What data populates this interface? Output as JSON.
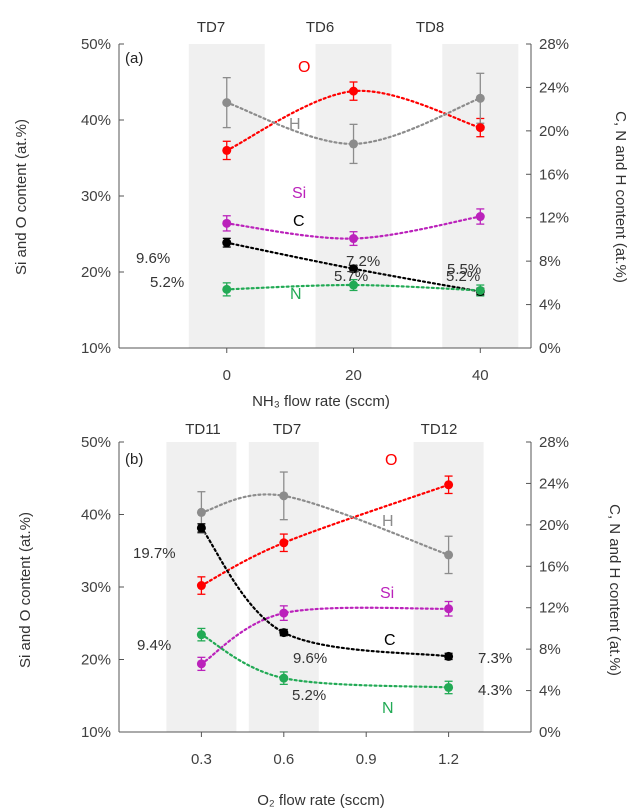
{
  "chart_data": [
    {
      "type": "scatter",
      "panel_label": "(a)",
      "xlabel": "NH₃ flow rate (sccm)",
      "ylabel_left": "Si and O content (at.%)",
      "ylabel_right": "C, N and H content (at.%)",
      "x": [
        0,
        20,
        40
      ],
      "x_ticks": [
        "0",
        "20",
        "40"
      ],
      "xlim": [
        -17,
        48
      ],
      "ylim_left": [
        10,
        50
      ],
      "ylim_right": [
        0,
        28
      ],
      "y_ticks_left": [
        "10%",
        "20%",
        "30%",
        "40%",
        "50%"
      ],
      "y_ticks_right": [
        "0%",
        "4%",
        "8%",
        "12%",
        "16%",
        "20%",
        "24%",
        "28%"
      ],
      "shaded_columns": [
        0,
        20,
        40
      ],
      "samples": [
        "TD7",
        "TD6",
        "TD8"
      ],
      "series": [
        {
          "name": "O",
          "axis": "left",
          "color": "#ff0000",
          "values": [
            36.0,
            43.8,
            39.0
          ],
          "errors": [
            1.2,
            1.2,
            1.2
          ]
        },
        {
          "name": "Si",
          "axis": "left",
          "color": "#bb22bb",
          "values": [
            26.4,
            24.4,
            27.3
          ],
          "errors": [
            1.0,
            0.9,
            1.0
          ]
        },
        {
          "name": "H",
          "axis": "right",
          "color": "#8c8c8c",
          "values": [
            22.6,
            18.8,
            23.0
          ],
          "errors": [
            2.3,
            1.8,
            2.3
          ]
        },
        {
          "name": "C",
          "axis": "right",
          "color": "#000000",
          "values": [
            9.7,
            7.3,
            5.2
          ],
          "errors": [
            0.4,
            0.3,
            0.3
          ]
        },
        {
          "name": "N",
          "axis": "right",
          "color": "#22aa55",
          "values": [
            5.4,
            5.8,
            5.3
          ],
          "errors": [
            0.6,
            0.5,
            0.5
          ]
        }
      ],
      "annotations": [
        "9.6%",
        "7.2%",
        "5.5%",
        "5.2%",
        "5.7%",
        "5.2%"
      ]
    },
    {
      "type": "scatter",
      "panel_label": "(b)",
      "xlabel": "O₂ flow rate (sccm)",
      "ylabel_left": "Si and O content (at.%)",
      "ylabel_right": "C, N and H content (at.%)",
      "x": [
        0.3,
        0.6,
        1.2
      ],
      "x_ticks": [
        "0.3",
        "0.6",
        "0.9",
        "1.2"
      ],
      "xlim": [
        0.0,
        1.5
      ],
      "ylim_left": [
        10,
        50
      ],
      "ylim_right": [
        0,
        28
      ],
      "y_ticks_left": [
        "10%",
        "20%",
        "30%",
        "40%",
        "50%"
      ],
      "y_ticks_right": [
        "0%",
        "4%",
        "8%",
        "12%",
        "16%",
        "20%",
        "24%",
        "28%"
      ],
      "shaded_columns": [
        0.3,
        0.6,
        1.2
      ],
      "samples": [
        "TD11",
        "TD7",
        "TD12"
      ],
      "series": [
        {
          "name": "O",
          "axis": "left",
          "color": "#ff0000",
          "values": [
            30.2,
            36.1,
            44.1
          ],
          "errors": [
            1.2,
            1.2,
            1.2
          ]
        },
        {
          "name": "Si",
          "axis": "left",
          "color": "#bb22bb",
          "values": [
            19.4,
            26.4,
            27.0
          ],
          "errors": [
            0.9,
            1.0,
            1.0
          ]
        },
        {
          "name": "H",
          "axis": "right",
          "color": "#8c8c8c",
          "values": [
            21.2,
            22.8,
            17.1
          ],
          "errors": [
            2.0,
            2.3,
            1.8
          ]
        },
        {
          "name": "C",
          "axis": "right",
          "color": "#000000",
          "values": [
            19.7,
            9.6,
            7.3
          ],
          "errors": [
            0.4,
            0.3,
            0.3
          ]
        },
        {
          "name": "N",
          "axis": "right",
          "color": "#22aa55",
          "values": [
            9.4,
            5.2,
            4.3
          ],
          "errors": [
            0.6,
            0.6,
            0.6
          ]
        }
      ],
      "annotations": [
        "19.7%",
        "9.4%",
        "9.6%",
        "5.2%",
        "7.3%",
        "4.3%"
      ]
    }
  ]
}
